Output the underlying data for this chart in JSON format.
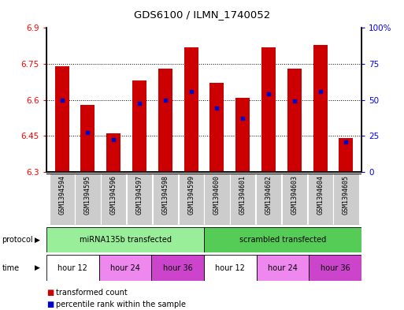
{
  "title": "GDS6100 / ILMN_1740052",
  "samples": [
    "GSM1394594",
    "GSM1394595",
    "GSM1394596",
    "GSM1394597",
    "GSM1394598",
    "GSM1394599",
    "GSM1394600",
    "GSM1394601",
    "GSM1394602",
    "GSM1394603",
    "GSM1394604",
    "GSM1394605"
  ],
  "bar_values": [
    6.74,
    6.58,
    6.46,
    6.68,
    6.73,
    6.82,
    6.67,
    6.61,
    6.82,
    6.73,
    6.83,
    6.44
  ],
  "percentile_values": [
    6.6,
    6.465,
    6.435,
    6.585,
    6.6,
    6.635,
    6.565,
    6.525,
    6.625,
    6.595,
    6.635,
    6.425
  ],
  "y_min": 6.3,
  "y_max": 6.9,
  "y_ticks": [
    6.3,
    6.45,
    6.6,
    6.75,
    6.9
  ],
  "right_y_ticks": [
    0,
    25,
    50,
    75,
    100
  ],
  "bar_color": "#cc0000",
  "percentile_color": "#0000cc",
  "protocol_groups": [
    {
      "label": "miRNA135b transfected",
      "start": 0,
      "end": 6,
      "color": "#99ee99"
    },
    {
      "label": "scrambled transfected",
      "start": 6,
      "end": 12,
      "color": "#55cc55"
    }
  ],
  "time_groups": [
    {
      "label": "hour 12",
      "start": 0,
      "end": 2,
      "color": "#ffffff"
    },
    {
      "label": "hour 24",
      "start": 2,
      "end": 4,
      "color": "#ee88ee"
    },
    {
      "label": "hour 36",
      "start": 4,
      "end": 6,
      "color": "#cc44cc"
    },
    {
      "label": "hour 12",
      "start": 6,
      "end": 8,
      "color": "#ffffff"
    },
    {
      "label": "hour 24",
      "start": 8,
      "end": 10,
      "color": "#ee88ee"
    },
    {
      "label": "hour 36",
      "start": 10,
      "end": 12,
      "color": "#cc44cc"
    }
  ],
  "legend_items": [
    {
      "label": "transformed count",
      "color": "#cc0000"
    },
    {
      "label": "percentile rank within the sample",
      "color": "#0000cc"
    }
  ],
  "sample_bg_color": "#cccccc",
  "protocol_label": "protocol",
  "time_label": "time",
  "bar_width": 0.55
}
